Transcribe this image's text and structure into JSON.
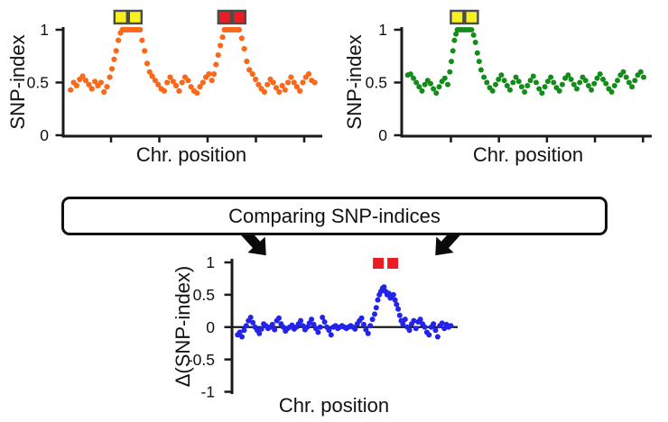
{
  "figure": {
    "background": "#ffffff",
    "axis_color": "#1a1a1a",
    "flow_box": {
      "label": "Comparing SNP-indices",
      "border_color": "#111111",
      "arrow_color": "#0a0a0a"
    }
  },
  "chart_data": [
    {
      "id": "pool-a-snp-index",
      "type": "scatter",
      "title": "",
      "xlabel": "Chr. position",
      "ylabel": "SNP-index",
      "color": "#F96919",
      "ylim": [
        0,
        1
      ],
      "grid": false,
      "yticks": [
        {
          "v": 1,
          "label": "1"
        },
        {
          "v": 0.5,
          "label": "0.5"
        },
        {
          "v": 0,
          "label": "0"
        }
      ],
      "xtick_count": 5,
      "markers": [
        {
          "name": "candidate-locus-yellow",
          "fill": "#F8F121",
          "stroke": "#4b4b4b",
          "pos": 24.2
        },
        {
          "name": "candidate-locus-red",
          "fill": "#EC1C24",
          "stroke": "#4b4b4b",
          "pos": 65.3
        }
      ],
      "segments": [
        {
          "x0": 1.5,
          "dx": 1.2,
          "v": [
            0.43,
            0.5,
            0.47,
            0.53,
            0.56,
            0.52,
            0.48,
            0.44,
            0.51,
            0.47,
            0.5,
            0.41,
            0.46
          ]
        },
        {
          "x0": 17,
          "dx": 0.85,
          "v": [
            0.55,
            0.63,
            0.72,
            0.8,
            0.9,
            0.97
          ]
        },
        {
          "x0": 22,
          "dx": 1.0,
          "v": [
            1,
            1,
            1,
            1,
            1,
            1,
            1,
            1
          ]
        },
        {
          "x0": 29.8,
          "dx": 1.0,
          "v": [
            0.9,
            0.8,
            0.68,
            0.6
          ]
        },
        {
          "x0": 33.8,
          "dx": 1.18,
          "v": [
            0.56,
            0.52,
            0.48,
            0.44,
            0.42,
            0.5,
            0.55,
            0.51,
            0.47,
            0.42,
            0.5,
            0.55,
            0.52,
            0.46,
            0.42,
            0.4,
            0.46,
            0.5,
            0.55,
            0.58,
            0.52
          ]
        },
        {
          "x0": 58.2,
          "dx": 0.85,
          "v": [
            0.58,
            0.67,
            0.76,
            0.85,
            0.93
          ]
        },
        {
          "x0": 62.4,
          "dx": 0.97,
          "v": [
            1,
            1,
            1,
            1,
            1,
            1,
            1
          ]
        },
        {
          "x0": 69.2,
          "dx": 1.0,
          "v": [
            0.92,
            0.82,
            0.7,
            0.62
          ]
        },
        {
          "x0": 73.5,
          "dx": 1.17,
          "v": [
            0.58,
            0.53,
            0.48,
            0.44,
            0.41,
            0.48,
            0.53,
            0.5,
            0.45,
            0.41,
            0.47,
            0.43,
            0.5,
            0.55,
            0.5,
            0.46,
            0.42,
            0.5,
            0.55,
            0.58,
            0.52,
            0.5
          ]
        }
      ]
    },
    {
      "id": "pool-b-snp-index",
      "type": "scatter",
      "title": "",
      "xlabel": "Chr. position",
      "ylabel": "SNP-index",
      "color": "#148C19",
      "ylim": [
        0,
        1
      ],
      "grid": false,
      "yticks": [
        {
          "v": 1,
          "label": "1"
        },
        {
          "v": 0.5,
          "label": "0.5"
        },
        {
          "v": 0,
          "label": "0"
        }
      ],
      "xtick_count": 5,
      "markers": [
        {
          "name": "candidate-locus-yellow",
          "fill": "#F8F121",
          "stroke": "#4b4b4b",
          "pos": 24.4
        }
      ],
      "segments": [
        {
          "x0": 1,
          "dx": 1.18,
          "v": [
            0.57,
            0.58,
            0.54,
            0.5,
            0.46,
            0.42,
            0.48,
            0.52,
            0.49,
            0.44,
            0.4,
            0.46,
            0.51,
            0.54,
            0.48
          ]
        },
        {
          "x0": 18.4,
          "dx": 0.63,
          "v": [
            0.6,
            0.7,
            0.8,
            0.9,
            0.96
          ]
        },
        {
          "x0": 21.5,
          "dx": 0.98,
          "v": [
            1,
            1,
            1,
            1,
            1,
            1,
            1
          ]
        },
        {
          "x0": 28.2,
          "dx": 0.78,
          "v": [
            0.95,
            0.88,
            0.78,
            0.7,
            0.62
          ]
        },
        {
          "x0": 32.5,
          "dx": 1.2,
          "v": [
            0.55,
            0.5,
            0.45,
            0.42,
            0.48,
            0.53,
            0.57,
            0.52,
            0.47,
            0.43,
            0.5,
            0.55,
            0.51,
            0.46,
            0.41,
            0.47,
            0.52,
            0.56,
            0.5,
            0.44,
            0.4,
            0.46,
            0.51,
            0.55,
            0.5,
            0.45,
            0.42,
            0.48,
            0.54,
            0.57,
            0.53,
            0.48,
            0.44,
            0.5,
            0.55,
            0.52,
            0.47,
            0.43,
            0.49,
            0.54,
            0.58,
            0.53,
            0.49,
            0.44,
            0.41,
            0.47,
            0.52,
            0.57,
            0.6,
            0.55,
            0.5,
            0.46,
            0.52,
            0.57,
            0.6,
            0.55
          ]
        }
      ]
    },
    {
      "id": "delta-snp-index",
      "type": "scatter",
      "title": "",
      "xlabel": "Chr. position",
      "ylabel": "Δ(SNP-index)",
      "color": "#2323EB",
      "ylim": [
        -1,
        1
      ],
      "grid": false,
      "zero_line": true,
      "yticks": [
        {
          "v": 1,
          "label": "1"
        },
        {
          "v": 0.5,
          "label": "0.5"
        },
        {
          "v": 0,
          "label": "0"
        },
        {
          "v": -0.5,
          "label": "-0.5"
        },
        {
          "v": -1,
          "label": "-1"
        }
      ],
      "xtick_count": 0,
      "markers": [
        {
          "name": "candidate-locus-red",
          "fill": "#EC1C24",
          "stroke": "none",
          "pos": 68.5
        }
      ],
      "segments": [
        {
          "x0": 0.5,
          "dx": 1.0,
          "v": [
            -0.12,
            -0.08,
            -0.15,
            -0.05,
            0.02,
            0.1,
            0.15,
            0.07,
            0,
            -0.05,
            -0.1,
            -0.03,
            0.05,
            0.02,
            -0.02,
            0,
            0.04,
            -0.04,
            0.1,
            0.14,
            0.05,
            0,
            -0.06,
            -0.02,
            0,
            0.03,
            -0.03,
            0,
            0.05,
            0.1,
            0.02,
            -0.04,
            0,
            0.06,
            0.12,
            0.04,
            -0.02,
            -0.08,
            0,
            0.15,
            0.08,
            0,
            -0.05,
            -0.12,
            0,
            0.02,
            -0.02,
            0,
            0.02,
            0,
            -0.02,
            0,
            0.02,
            0,
            -0.03,
            0.05,
            0.1,
            0.14,
            0.04,
            -0.04,
            -0.1,
            0.02,
            0.12
          ]
        },
        {
          "x0": 63.5,
          "dx": 0.72,
          "v": [
            0.2,
            0.3,
            0.42,
            0.5,
            0.55,
            0.6,
            0.62,
            0.55,
            0.5,
            0.52,
            0.45,
            0.48,
            0.5,
            0.42,
            0.35,
            0.28,
            0.18,
            0.1,
            0.05
          ]
        },
        {
          "x0": 77.5,
          "dx": 1.0,
          "v": [
            0.12,
            0,
            -0.05,
            0.05,
            0.1,
            -0.02,
            0.08,
            0.12,
            0.05,
            0,
            -0.08,
            -0.12,
            0,
            0.05,
            -0.05,
            -0.15,
            0.02,
            0.06,
            -0.02,
            0.04,
            0,
            0.02
          ]
        }
      ]
    }
  ]
}
